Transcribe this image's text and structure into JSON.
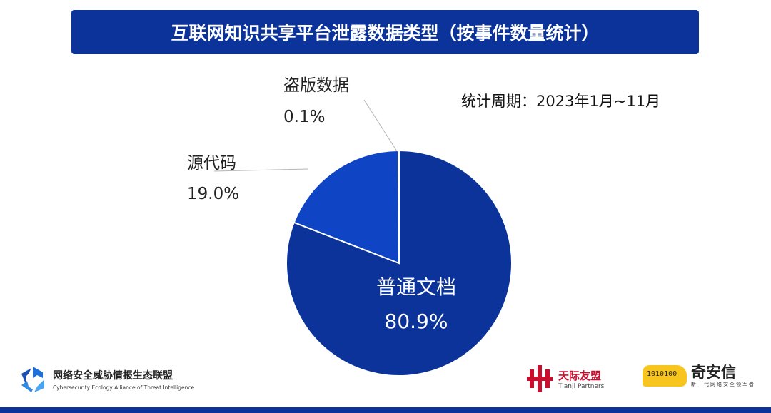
{
  "title": "互联网知识共享平台泄露数据类型（按事件数量统计）",
  "period": "统计周期：2023年1月~11月",
  "chart_data": {
    "type": "pie",
    "title": "互联网知识共享平台泄露数据类型（按事件数量统计）",
    "slices": [
      {
        "label": "普通文档",
        "value": 80.9,
        "value_label": "80.9%",
        "color": "#0b3399"
      },
      {
        "label": "源代码",
        "value": 19.0,
        "value_label": "19.0%",
        "color": "#0f44c4"
      },
      {
        "label": "盗版数据",
        "value": 0.1,
        "value_label": "0.1%",
        "color": "#1f66e8"
      }
    ]
  },
  "logos": {
    "alliance_cn": "网络安全威胁情报生态联盟",
    "alliance_en": "Cybersecurity Ecology Alliance of Threat Intelligence",
    "tianji_cn": "天际友盟",
    "tianji_en": "TianJi Partners",
    "qianxin_cn": "奇安信",
    "qianxin_slogan": "新一代网络安全领军者",
    "qianxin_binary": "1010100"
  }
}
